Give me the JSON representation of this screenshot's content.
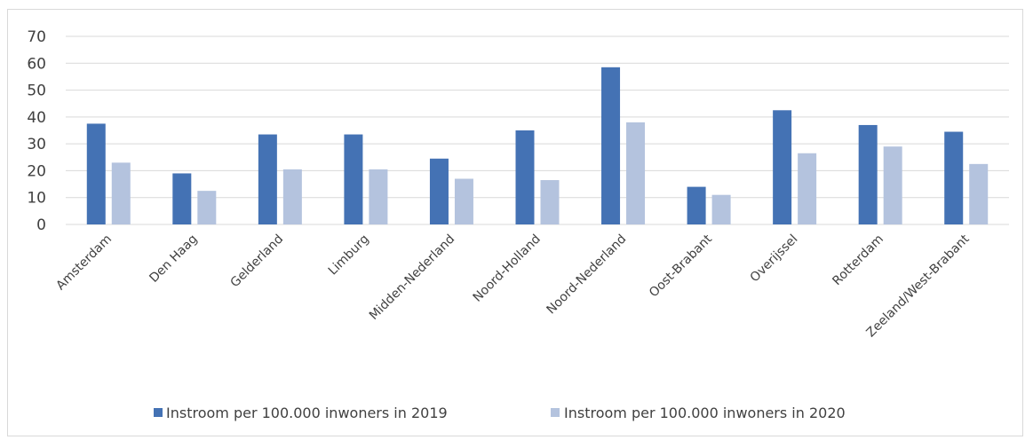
{
  "chart_data": {
    "type": "bar",
    "categories": [
      "Amsterdam",
      "Den Haag",
      "Gelderland",
      "Limburg",
      "Midden-Nederland",
      "Noord-Holland",
      "Noord-Nederland",
      "Oost-Brabant",
      "Overijssel",
      "Rotterdam",
      "Zeeland/West-Brabant"
    ],
    "series": [
      {
        "name": "Instroom per 100.000 inwoners in 2019",
        "color": "#4472b4",
        "values": [
          37.5,
          19,
          33.5,
          33.5,
          24.5,
          35,
          58.5,
          14,
          42.5,
          37,
          34.5
        ]
      },
      {
        "name": "Instroom per 100.000 inwoners in 2020",
        "color": "#b4c3de",
        "values": [
          23,
          12.5,
          20.5,
          20.5,
          17,
          16.5,
          38,
          11,
          26.5,
          29,
          22.5
        ]
      }
    ],
    "yticks": [
      "0",
      "10",
      "20",
      "30",
      "40",
      "50",
      "60",
      "70"
    ],
    "ylim": [
      0,
      70
    ],
    "grid": true,
    "legend": "bottom",
    "title": "",
    "xlabel": "",
    "ylabel": ""
  }
}
